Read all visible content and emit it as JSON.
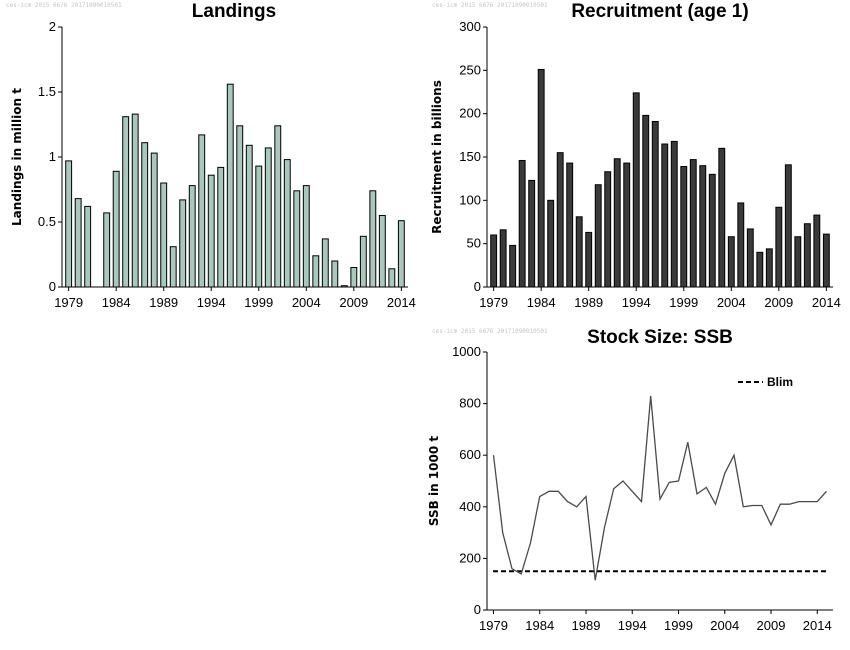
{
  "stamp": "ces-icm 2015 6676 20171090010501",
  "colors": {
    "landings_fill": "#a8c8bc",
    "recruit_fill": "#3a3a3a",
    "line": "#4a4a4a",
    "axis": "#000000"
  },
  "chart_data": [
    {
      "type": "bar",
      "title": "Landings",
      "ylabel": "Landings in million t",
      "ylim": [
        0,
        2
      ],
      "yticks": [
        0,
        0.5,
        1,
        1.5,
        2
      ],
      "ytick_labels": [
        "0",
        "0.5",
        "1",
        "1.5",
        "2"
      ],
      "xlim": [
        1978.3,
        2014.7
      ],
      "xticks": [
        1979,
        1984,
        1989,
        1994,
        1999,
        2004,
        2009,
        2014
      ],
      "xtick_labels": [
        "1979",
        "1984",
        "1989",
        "1994",
        "1999",
        "2004",
        "2009",
        "2014"
      ],
      "x": [
        1979,
        1980,
        1981,
        1982,
        1983,
        1984,
        1985,
        1986,
        1987,
        1988,
        1989,
        1990,
        1991,
        1992,
        1993,
        1994,
        1995,
        1996,
        1997,
        1998,
        1999,
        2000,
        2001,
        2002,
        2003,
        2004,
        2005,
        2006,
        2007,
        2008,
        2009,
        2010,
        2011,
        2012,
        2013,
        2014
      ],
      "values": [
        0.97,
        0.68,
        0.62,
        0,
        0.57,
        0.89,
        1.31,
        1.33,
        1.11,
        1.03,
        0.8,
        0.31,
        0.67,
        0.78,
        1.17,
        0.86,
        0.92,
        1.56,
        1.24,
        1.09,
        0.93,
        1.07,
        1.24,
        0.98,
        0.74,
        0.78,
        0.24,
        0.37,
        0.2,
        0.01,
        0.15,
        0.39,
        0.74,
        0.55,
        0.14,
        0.51
      ]
    },
    {
      "type": "bar",
      "title": "Recruitment (age 1)",
      "ylabel": "Recruitment in billions",
      "ylim": [
        0,
        300
      ],
      "yticks": [
        0,
        50,
        100,
        150,
        200,
        250,
        300
      ],
      "ytick_labels": [
        "0",
        "50",
        "100",
        "150",
        "200",
        "250",
        "300"
      ],
      "xlim": [
        1978.3,
        2014.7
      ],
      "xticks": [
        1979,
        1984,
        1989,
        1994,
        1999,
        2004,
        2009,
        2014
      ],
      "xtick_labels": [
        "1979",
        "1984",
        "1989",
        "1994",
        "1999",
        "2004",
        "2009",
        "2014"
      ],
      "x": [
        1979,
        1980,
        1981,
        1982,
        1983,
        1984,
        1985,
        1986,
        1987,
        1988,
        1989,
        1990,
        1991,
        1992,
        1993,
        1994,
        1995,
        1996,
        1997,
        1998,
        1999,
        2000,
        2001,
        2002,
        2003,
        2004,
        2005,
        2006,
        2007,
        2008,
        2009,
        2010,
        2011,
        2012,
        2013,
        2014
      ],
      "values": [
        60,
        66,
        48,
        146,
        123,
        251,
        100,
        155,
        143,
        81,
        63,
        118,
        133,
        148,
        143,
        224,
        198,
        191,
        165,
        168,
        139,
        147,
        140,
        130,
        160,
        58,
        97,
        67,
        40,
        44,
        92,
        141,
        58,
        73,
        83,
        61
      ]
    },
    {
      "type": "line",
      "title": "Stock Size: SSB",
      "ylabel": "SSB in 1000 t",
      "ylim": [
        0,
        1000
      ],
      "yticks": [
        0,
        200,
        400,
        600,
        800,
        1000
      ],
      "ytick_labels": [
        "0",
        "200",
        "400",
        "600",
        "800",
        "1000"
      ],
      "xlim": [
        1978.3,
        2015.7
      ],
      "xticks": [
        1979,
        1984,
        1989,
        1994,
        1999,
        2004,
        2009,
        2014
      ],
      "xtick_labels": [
        "1979",
        "1984",
        "1989",
        "1994",
        "1999",
        "2004",
        "2009",
        "2014"
      ],
      "legend": {
        "label": "Blim",
        "placement": "top-right"
      },
      "reference_line": {
        "name": "Blim",
        "value": 150,
        "style": "dashed"
      },
      "x": [
        1979,
        1980,
        1981,
        1982,
        1983,
        1984,
        1985,
        1986,
        1987,
        1988,
        1989,
        1990,
        1991,
        1992,
        1993,
        1994,
        1995,
        1996,
        1997,
        1998,
        1999,
        2000,
        2001,
        2002,
        2003,
        2004,
        2005,
        2006,
        2007,
        2008,
        2009,
        2010,
        2011,
        2012,
        2013,
        2014,
        2015
      ],
      "values": [
        600,
        300,
        160,
        140,
        260,
        440,
        460,
        460,
        420,
        400,
        440,
        115,
        320,
        470,
        500,
        460,
        420,
        830,
        430,
        495,
        500,
        650,
        450,
        475,
        410,
        530,
        600,
        400,
        405,
        405,
        330,
        410,
        410,
        420,
        420,
        420,
        460
      ]
    }
  ]
}
